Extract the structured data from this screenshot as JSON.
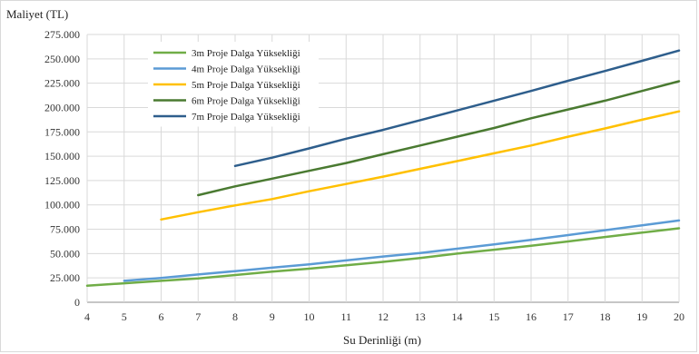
{
  "chart_data": {
    "type": "line",
    "title": "",
    "ylabel": "Maliyet (TL)",
    "xlabel": "Su Derinliği (m)",
    "xlim": [
      4,
      20
    ],
    "ylim": [
      0,
      275000
    ],
    "grid": true,
    "legend_position": "top-left",
    "x_ticks": [
      "4",
      "5",
      "6",
      "7",
      "8",
      "9",
      "10",
      "11",
      "12",
      "13",
      "14",
      "15",
      "16",
      "17",
      "18",
      "19",
      "20"
    ],
    "y_ticks": [
      "0",
      "25.000",
      "50.000",
      "75.000",
      "100.000",
      "125.000",
      "150.000",
      "175.000",
      "200.000",
      "225.000",
      "250.000",
      "275.000"
    ],
    "series": [
      {
        "name": "3m Proje Dalga Yüksekliği",
        "color": "#70ad47",
        "x": [
          4,
          5,
          6,
          7,
          8,
          9,
          10,
          11,
          12,
          13,
          14,
          15,
          16,
          17,
          18,
          19,
          20
        ],
        "values": [
          17000,
          19500,
          22000,
          24500,
          28000,
          31500,
          34500,
          38000,
          41500,
          45500,
          50000,
          54000,
          58000,
          62500,
          67000,
          71500,
          76000
        ]
      },
      {
        "name": "4m Proje Dalga Yüksekliği",
        "color": "#5b9bd5",
        "x": [
          5,
          6,
          7,
          8,
          9,
          10,
          11,
          12,
          13,
          14,
          15,
          16,
          17,
          18,
          19,
          20
        ],
        "values": [
          22000,
          25000,
          28500,
          32000,
          35500,
          39000,
          43000,
          47000,
          50500,
          55000,
          59500,
          64000,
          69000,
          74000,
          79000,
          84000
        ]
      },
      {
        "name": "5m Proje Dalga Yüksekliği",
        "color": "#ffc000",
        "x": [
          6,
          7,
          8,
          9,
          10,
          11,
          12,
          13,
          14,
          15,
          16,
          17,
          18,
          19,
          20
        ],
        "values": [
          85000,
          92500,
          99500,
          106000,
          114000,
          121500,
          129000,
          137000,
          145000,
          153000,
          161000,
          170000,
          178500,
          187500,
          196000
        ]
      },
      {
        "name": "6m Proje Dalga Yüksekliği",
        "color": "#4a7a31",
        "x": [
          7,
          8,
          9,
          10,
          11,
          12,
          13,
          14,
          15,
          16,
          17,
          18,
          19,
          20
        ],
        "values": [
          110000,
          119000,
          127000,
          135000,
          143000,
          152000,
          161000,
          170000,
          179000,
          189000,
          198000,
          207000,
          217000,
          227000
        ]
      },
      {
        "name": "7m Proje Dalga Yüksekliği",
        "color": "#2e5e8c",
        "x": [
          8,
          9,
          10,
          11,
          12,
          13,
          14,
          15,
          16,
          17,
          18,
          19,
          20
        ],
        "values": [
          140000,
          148500,
          158000,
          168000,
          177000,
          187000,
          197000,
          207000,
          217000,
          227500,
          237500,
          248000,
          258500
        ]
      }
    ]
  }
}
